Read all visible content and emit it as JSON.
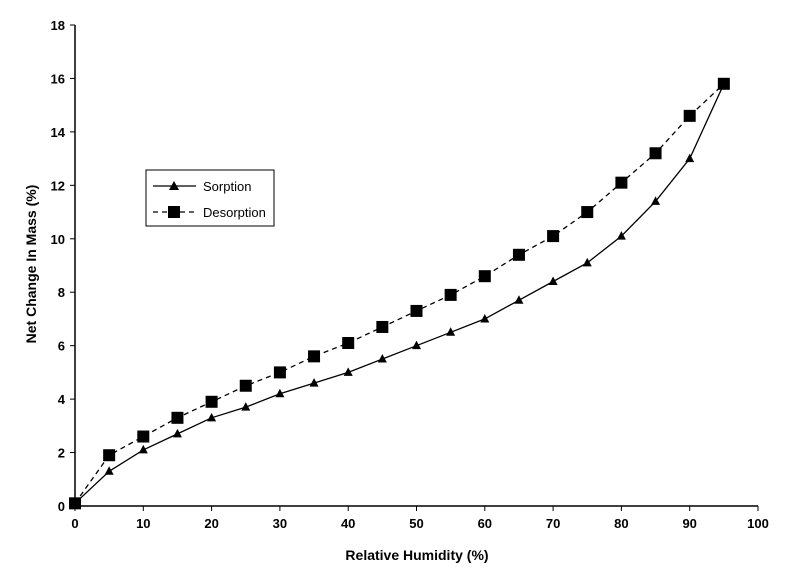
{
  "chart_data": {
    "type": "line",
    "title": "",
    "xlabel": "Relative Humidity (%)",
    "ylabel": "Net Change In Mass (%)",
    "xlim": [
      0,
      100
    ],
    "ylim": [
      0,
      18
    ],
    "x_ticks": [
      "0",
      "10",
      "20",
      "30",
      "40",
      "50",
      "60",
      "70",
      "80",
      "90",
      "100"
    ],
    "y_ticks": [
      "0",
      "2",
      "4",
      "6",
      "8",
      "10",
      "12",
      "14",
      "16",
      "18"
    ],
    "grid": false,
    "legend_position": "left",
    "series": [
      {
        "name": "Sorption",
        "marker": "triangle",
        "line_style": "solid",
        "color": "#000000",
        "x": [
          0,
          5,
          10,
          15,
          20,
          25,
          30,
          35,
          40,
          45,
          50,
          55,
          60,
          65,
          70,
          75,
          80,
          85,
          90,
          95
        ],
        "values": [
          0.1,
          1.3,
          2.1,
          2.7,
          3.3,
          3.7,
          4.2,
          4.6,
          5.0,
          5.5,
          6.0,
          6.5,
          7.0,
          7.7,
          8.4,
          9.1,
          10.1,
          11.4,
          13.0,
          15.8
        ]
      },
      {
        "name": "Desorption",
        "marker": "square",
        "line_style": "dashed",
        "color": "#000000",
        "x": [
          0,
          5,
          10,
          15,
          20,
          25,
          30,
          35,
          40,
          45,
          50,
          55,
          60,
          65,
          70,
          75,
          80,
          85,
          90,
          95
        ],
        "values": [
          0.1,
          1.9,
          2.6,
          3.3,
          3.9,
          4.5,
          5.0,
          5.6,
          6.1,
          6.7,
          7.3,
          7.9,
          8.6,
          9.4,
          10.1,
          11.0,
          12.1,
          13.2,
          14.6,
          15.8
        ]
      }
    ]
  }
}
